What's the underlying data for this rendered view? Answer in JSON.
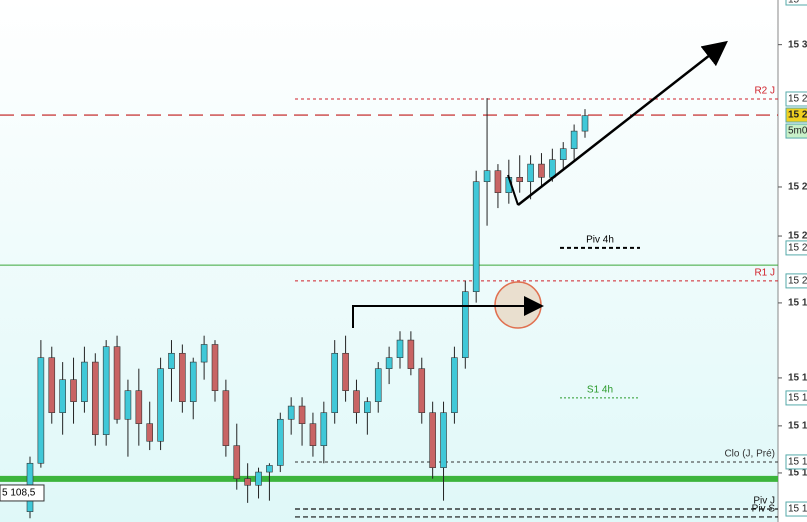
{
  "chart_data": {
    "type": "candlestick",
    "ylim": [
      15095.3,
      15332.6
    ],
    "yticks": [
      {
        "value": 15312.3,
        "label": "15 3"
      },
      {
        "value": 15247.6,
        "label": "15 2"
      },
      {
        "value": 15225.3,
        "label": "15 2"
      },
      {
        "value": 15194.9,
        "label": "15 1"
      },
      {
        "value": 15160.8,
        "label": "15 1"
      },
      {
        "value": 15139.0,
        "label": "15 1"
      },
      {
        "value": 15117.6,
        "label": "15 1"
      }
    ],
    "series": [
      {
        "name": "open",
        "values": [
          15100,
          15122,
          15170,
          15145,
          15160,
          15150,
          15168,
          15135,
          15175,
          15142,
          15155,
          15140,
          15132,
          15165,
          15172,
          15150,
          15168,
          15176,
          15155,
          15130,
          15115,
          15112,
          15118,
          15121,
          15142,
          15148,
          15140,
          15130,
          15145,
          15172,
          15155,
          15145,
          15150,
          15165,
          15170,
          15178,
          15165,
          15145,
          15120,
          15145,
          15170,
          15200,
          15250,
          15255,
          15245,
          15252,
          15250,
          15258,
          15252,
          15260,
          15265,
          15273
        ]
      },
      {
        "name": "high",
        "values": [
          15125,
          15178,
          15175,
          15168,
          15170,
          15175,
          15172,
          15178,
          15180,
          15160,
          15165,
          15150,
          15170,
          15178,
          15176,
          15170,
          15180,
          15178,
          15160,
          15140,
          15122,
          15120,
          15122,
          15145,
          15152,
          15152,
          15145,
          15150,
          15178,
          15180,
          15160,
          15152,
          15168,
          15175,
          15182,
          15182,
          15170,
          15150,
          15150,
          15175,
          15205,
          15255,
          15288,
          15258,
          15260,
          15262,
          15262,
          15263,
          15265,
          15268,
          15276,
          15283
        ]
      },
      {
        "name": "low",
        "values": [
          15097,
          15120,
          15140,
          15135,
          15140,
          15145,
          15130,
          15130,
          15140,
          15125,
          15130,
          15128,
          15128,
          15150,
          15145,
          15142,
          15160,
          15150,
          15125,
          15110,
          15104,
          15106,
          15105,
          15118,
          15135,
          15130,
          15125,
          15122,
          15140,
          15150,
          15140,
          15135,
          15145,
          15158,
          15165,
          15162,
          15140,
          15115,
          15105,
          15140,
          15165,
          15195,
          15230,
          15238,
          15240,
          15245,
          15242,
          15248,
          15250,
          15255,
          15260,
          15270
        ]
      },
      {
        "name": "close",
        "values": [
          15122,
          15170,
          15145,
          15160,
          15150,
          15168,
          15135,
          15175,
          15142,
          15155,
          15140,
          15132,
          15165,
          15172,
          15150,
          15168,
          15176,
          15155,
          15130,
          15115,
          15112,
          15118,
          15121,
          15142,
          15148,
          15140,
          15130,
          15145,
          15172,
          15155,
          15145,
          15150,
          15165,
          15170,
          15178,
          15165,
          15145,
          15120,
          15145,
          15170,
          15200,
          15250,
          15255,
          15245,
          15252,
          15250,
          15258,
          15252,
          15260,
          15265,
          15273,
          15280
        ]
      }
    ],
    "levels": [
      {
        "name": "R2 J",
        "value": 15287.6,
        "color": "#d0202a",
        "style": "dotted",
        "axis_label": "15 2"
      },
      {
        "value": 15280.3,
        "color": "#c01818",
        "style": "longdash",
        "axis_label": "15 2"
      },
      {
        "name": "Piv 4h",
        "value": 15219.9,
        "color": "#000000",
        "style": "short",
        "axis_label": "15 2"
      },
      {
        "value": 15212.1,
        "color": "#3aa83a",
        "style": "solid"
      },
      {
        "name": "R1 J",
        "value": 15204.9,
        "color": "#d0202a",
        "style": "dotted",
        "axis_label": "15 2"
      },
      {
        "name": "S1 4h",
        "value": 15151.7,
        "color": "#2a9a2a",
        "style": "shortdot",
        "axis_label": "15 1"
      },
      {
        "name": "Clo (J, Pré)",
        "value": 15122.6,
        "color": "#333333",
        "style": "dotted",
        "axis_label": "15 1"
      },
      {
        "value": 15114.9,
        "color": "#3cb43c",
        "style": "thick"
      },
      {
        "name": "Piv J",
        "value": 15101.2,
        "color": "#111111",
        "style": "dashed",
        "axis_label": "15 1"
      },
      {
        "name": "Piv S",
        "value": 15097.6,
        "color": "#111111",
        "style": "dashed"
      }
    ],
    "current_price_label": "15 2",
    "timer_label": "5m0",
    "top_label": "15",
    "left_price": {
      "value": 15108.5,
      "label": "5 108,5"
    }
  }
}
